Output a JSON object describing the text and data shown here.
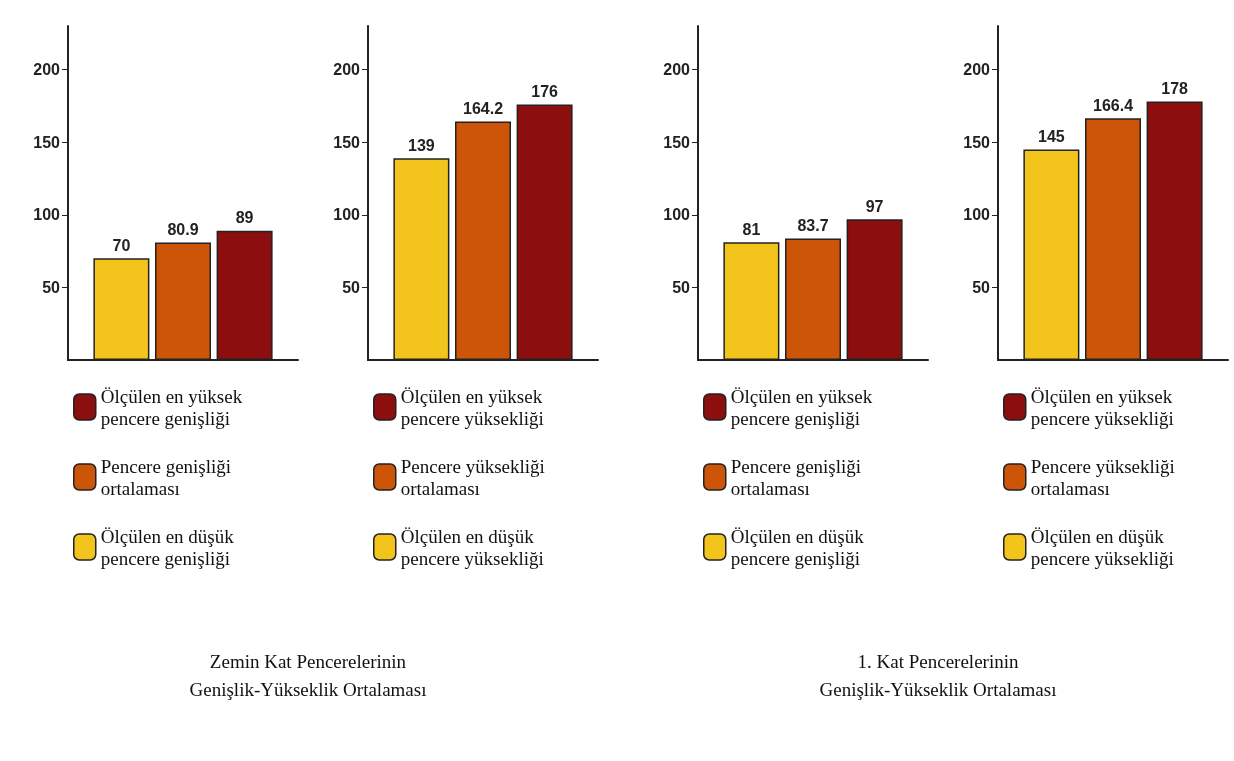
{
  "chart_data": [
    {
      "type": "bar",
      "title": "Zemin Kat Pencerelerinin\nGenişlik-Yükseklik Ortalaması",
      "categories": [
        null
      ],
      "ylim": [
        0,
        230
      ],
      "yticks": [
        50,
        100,
        150,
        200
      ],
      "grid": false,
      "legend": "bottom",
      "data_labels": true,
      "series": [
        {
          "name": "Ölçülen en düşük\npencere genişliği",
          "color": "#f2c41c",
          "values": [
            70
          ]
        },
        {
          "name": "Pencere genişliği\nortalaması",
          "color": "#cc5508",
          "values": [
            80.9
          ]
        },
        {
          "name": "Ölçülen en yüksek\npencere genişliği",
          "color": "#8c0e0e",
          "values": [
            89
          ]
        }
      ]
    },
    {
      "type": "bar",
      "categories": [
        null
      ],
      "ylim": [
        0,
        230
      ],
      "yticks": [
        50,
        100,
        150,
        200
      ],
      "grid": false,
      "legend": "bottom",
      "data_labels": true,
      "series": [
        {
          "name": "Ölçülen en düşük\npencere yüksekliği",
          "color": "#f2c41c",
          "values": [
            139
          ]
        },
        {
          "name": "Pencere yüksekliği\nortalaması",
          "color": "#cc5508",
          "values": [
            164.2
          ]
        },
        {
          "name": "Ölçülen en yüksek\npencere yüksekliği",
          "color": "#8c0e0e",
          "values": [
            176
          ]
        }
      ]
    },
    {
      "type": "bar",
      "title": "1. Kat Pencerelerinin\nGenişlik-Yükseklik Ortalaması",
      "categories": [
        null
      ],
      "ylim": [
        0,
        230
      ],
      "yticks": [
        50,
        100,
        150,
        200
      ],
      "grid": false,
      "legend": "bottom",
      "data_labels": true,
      "series": [
        {
          "name": "Ölçülen en düşük\npencere genişliği",
          "color": "#f2c41c",
          "values": [
            81
          ]
        },
        {
          "name": "Pencere genişliği\nortalaması",
          "color": "#cc5508",
          "values": [
            83.7
          ]
        },
        {
          "name": "Ölçülen en yüksek\npencere genişliği",
          "color": "#8c0e0e",
          "values": [
            97
          ]
        }
      ]
    },
    {
      "type": "bar",
      "categories": [
        null
      ],
      "ylim": [
        0,
        230
      ],
      "yticks": [
        50,
        100,
        150,
        200
      ],
      "grid": false,
      "legend": "bottom",
      "data_labels": true,
      "series": [
        {
          "name": "Ölçülen en düşük\npencere yüksekliği",
          "color": "#f2c41c",
          "values": [
            145
          ]
        },
        {
          "name": "Pencere yüksekliği\nortalaması",
          "color": "#cc5508",
          "values": [
            166.4
          ]
        },
        {
          "name": "Ölçülen en yüksek\npencere yüksekliği",
          "color": "#8c0e0e",
          "values": [
            178
          ]
        }
      ]
    }
  ]
}
